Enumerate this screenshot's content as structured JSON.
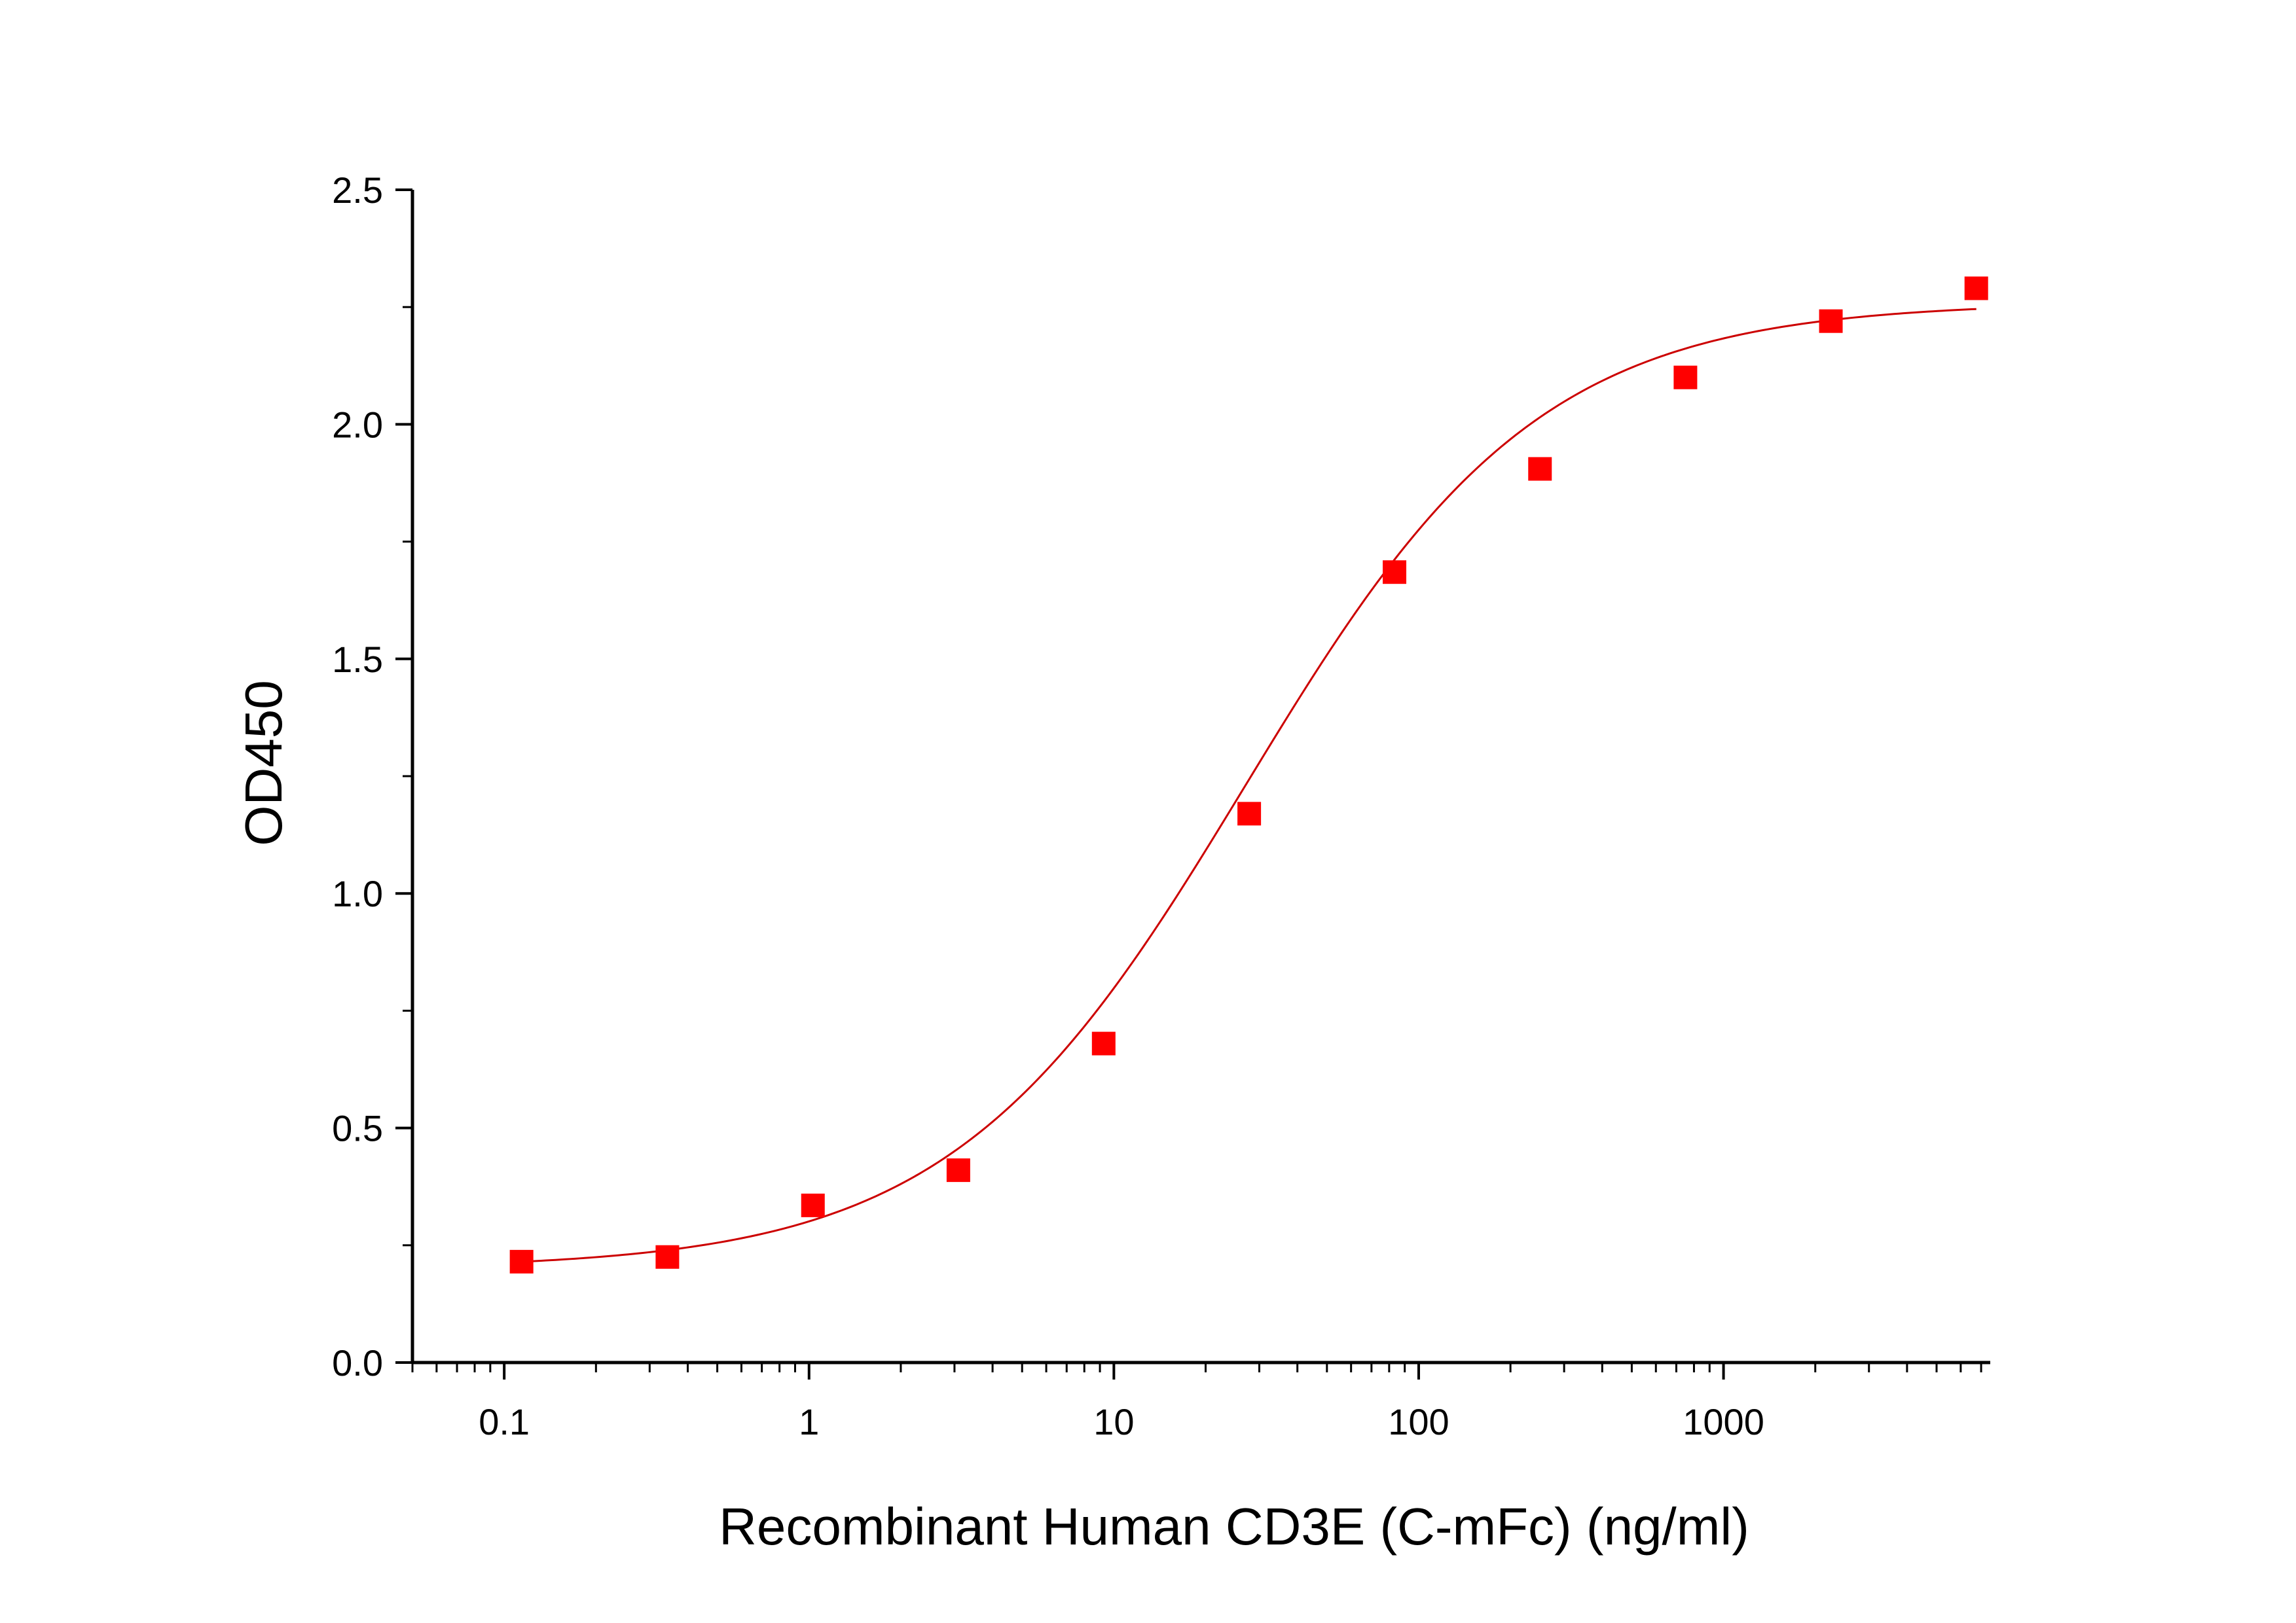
{
  "chart_data": {
    "type": "scatter",
    "title": "",
    "xlabel": "Recombinant Human CD3E (C-mFc) (ng/ml)",
    "ylabel": "OD450",
    "x_scale": "log",
    "xlim": [
      0.05,
      7500
    ],
    "ylim": [
      0,
      2.5
    ],
    "x_ticks": [
      {
        "value": 0.1,
        "label": "0.1"
      },
      {
        "value": 1,
        "label": "1"
      },
      {
        "value": 10,
        "label": "10"
      },
      {
        "value": 100,
        "label": "100"
      },
      {
        "value": 1000,
        "label": "1000"
      }
    ],
    "y_ticks": [
      {
        "value": 0,
        "label": "0.0"
      },
      {
        "value": 0.5,
        "label": "0.5"
      },
      {
        "value": 1.0,
        "label": "1.0"
      },
      {
        "value": 1.5,
        "label": "1.5"
      },
      {
        "value": 2.0,
        "label": "2.0"
      },
      {
        "value": 2.5,
        "label": "2.5"
      }
    ],
    "grid": false,
    "legend": "none",
    "series": [
      {
        "marker": "square",
        "color": "#ff0000",
        "x": [
          0.114,
          0.343,
          1.03,
          3.09,
          9.26,
          27.8,
          83.3,
          250,
          750,
          2250,
          6750
        ],
        "y": [
          0.215,
          0.225,
          0.335,
          0.41,
          0.68,
          1.17,
          1.685,
          1.905,
          2.1,
          2.22,
          2.29
        ]
      }
    ],
    "fit": {
      "type": "4-parameter logistic",
      "color": "#cc0000",
      "bottom": 0.2,
      "top": 2.26,
      "ec50": 27,
      "hill": 0.9
    }
  }
}
